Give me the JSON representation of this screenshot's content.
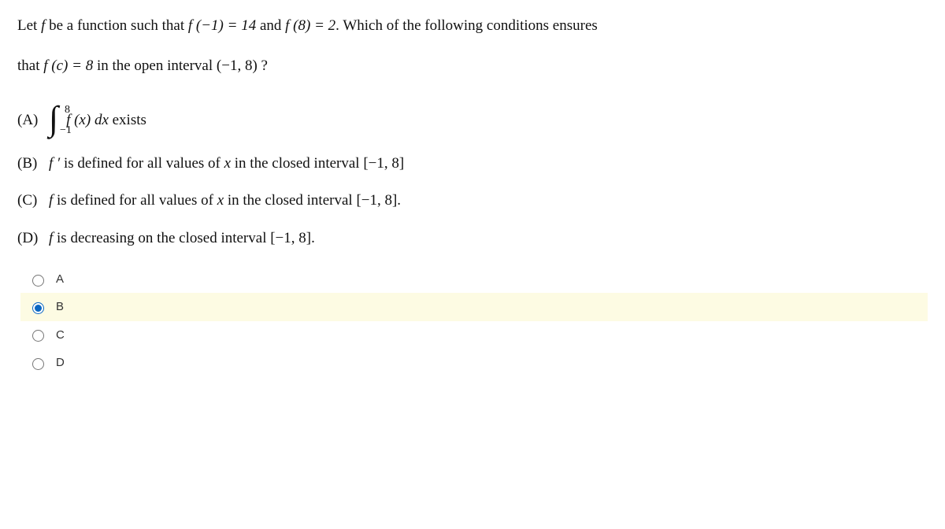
{
  "question": {
    "line1_pre": "Let ",
    "line1_f": "f",
    "line1_mid1": " be a function such that ",
    "line1_eq1": "f (−1) = 14",
    "line1_and": " and ",
    "line1_eq2": "f (8) = 2",
    "line1_post": ". Which of the following conditions ensures",
    "line2_pre": "that ",
    "line2_eq": "f (c) = 8",
    "line2_mid": " in the open interval ",
    "line2_interval": "(−1, 8)",
    "line2_post": " ?"
  },
  "choices": {
    "A": {
      "label": "(A)",
      "int_upper": "8",
      "int_lower": "−1",
      "integrand": "f (x)",
      "dx": " dx",
      "post": " exists"
    },
    "B": {
      "label": "(B)",
      "pre": "f ′",
      "text": " is defined for all values of ",
      "var": "x",
      "post": " in the closed interval ",
      "interval": "[−1, 8]"
    },
    "C": {
      "label": "(C)",
      "pre": "f",
      "text": " is defined for all values of ",
      "var": "x",
      "post": " in the closed interval ",
      "interval": "[−1, 8].",
      "period": ""
    },
    "D": {
      "label": "(D)",
      "pre": "f",
      "text": " is decreasing on the closed interval ",
      "interval": "[−1, 8]."
    }
  },
  "answers": {
    "A": "A",
    "B": "B",
    "C": "C",
    "D": "D",
    "selected": "B"
  },
  "style": {
    "highlight_bg": "#fdfbe3",
    "radio_accent": "#0a66c2",
    "body_font_size": 19,
    "answer_font_size": 15
  }
}
